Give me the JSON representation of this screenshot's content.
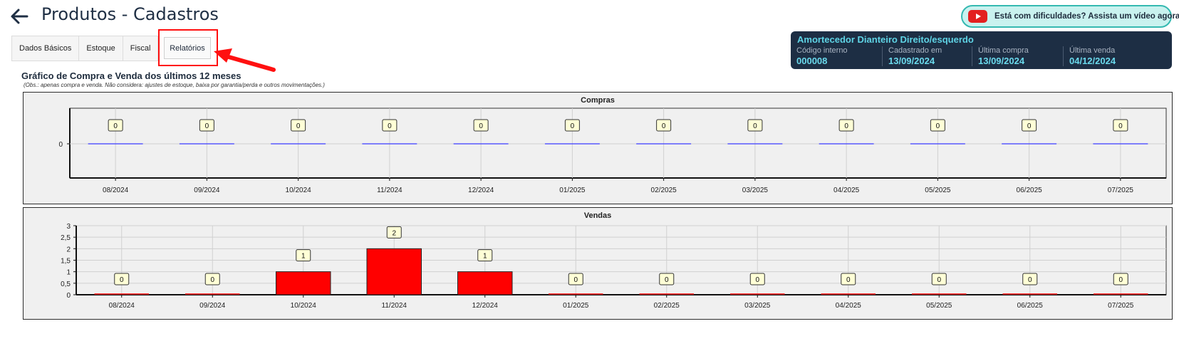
{
  "header": {
    "title": "Produtos - Cadastros",
    "back_icon": "arrow-left-icon",
    "help_text": "Está com dificuldades? Assista um vídeo agora!",
    "help_icon": "youtube-icon"
  },
  "tabs": [
    "Dados Básicos",
    "Estoque",
    "Fiscal",
    "Relatórios"
  ],
  "active_tab": "Relatórios",
  "product": {
    "name": "Amortecedor Dianteiro Direito/esquerdo",
    "fields": [
      {
        "label": "Código interno",
        "value": "000008"
      },
      {
        "label": "Cadastrado em",
        "value": "13/09/2024"
      },
      {
        "label": "Última compra",
        "value": "13/09/2024"
      },
      {
        "label": "Última venda",
        "value": "04/12/2024"
      }
    ]
  },
  "report": {
    "title": "Gráfico de Compra e Venda dos últimos 12 meses",
    "note": "(Obs.: apenas compra e venda. Não considera: ajustes de estoque, baixa por garantia/perda e outros movimentações.)"
  },
  "colors": {
    "accent_teal": "#35b9b1",
    "card_bg": "#1d2e44",
    "card_value": "#6ad9ec",
    "compras_line": "#3b3bff",
    "vendas_bar": "#ff0000",
    "highlight_red": "#ff0f0f"
  },
  "chart_data": [
    {
      "type": "bar",
      "title": "Compras",
      "categories": [
        "08/2024",
        "09/2024",
        "10/2024",
        "11/2024",
        "12/2024",
        "01/2025",
        "02/2025",
        "03/2025",
        "04/2025",
        "05/2025",
        "06/2025",
        "07/2025"
      ],
      "values": [
        0,
        0,
        0,
        0,
        0,
        0,
        0,
        0,
        0,
        0,
        0,
        0
      ],
      "yticks": [
        "0"
      ],
      "grid": true
    },
    {
      "type": "bar",
      "title": "Vendas",
      "categories": [
        "08/2024",
        "09/2024",
        "10/2024",
        "11/2024",
        "12/2024",
        "01/2025",
        "02/2025",
        "03/2025",
        "04/2025",
        "05/2025",
        "06/2025",
        "07/2025"
      ],
      "values": [
        0,
        0,
        1,
        2,
        1,
        0,
        0,
        0,
        0,
        0,
        0,
        0
      ],
      "ylim": [
        0,
        3
      ],
      "yticks": [
        "0",
        "0,5",
        "1",
        "1,5",
        "2",
        "2,5",
        "3"
      ],
      "grid": true
    }
  ]
}
